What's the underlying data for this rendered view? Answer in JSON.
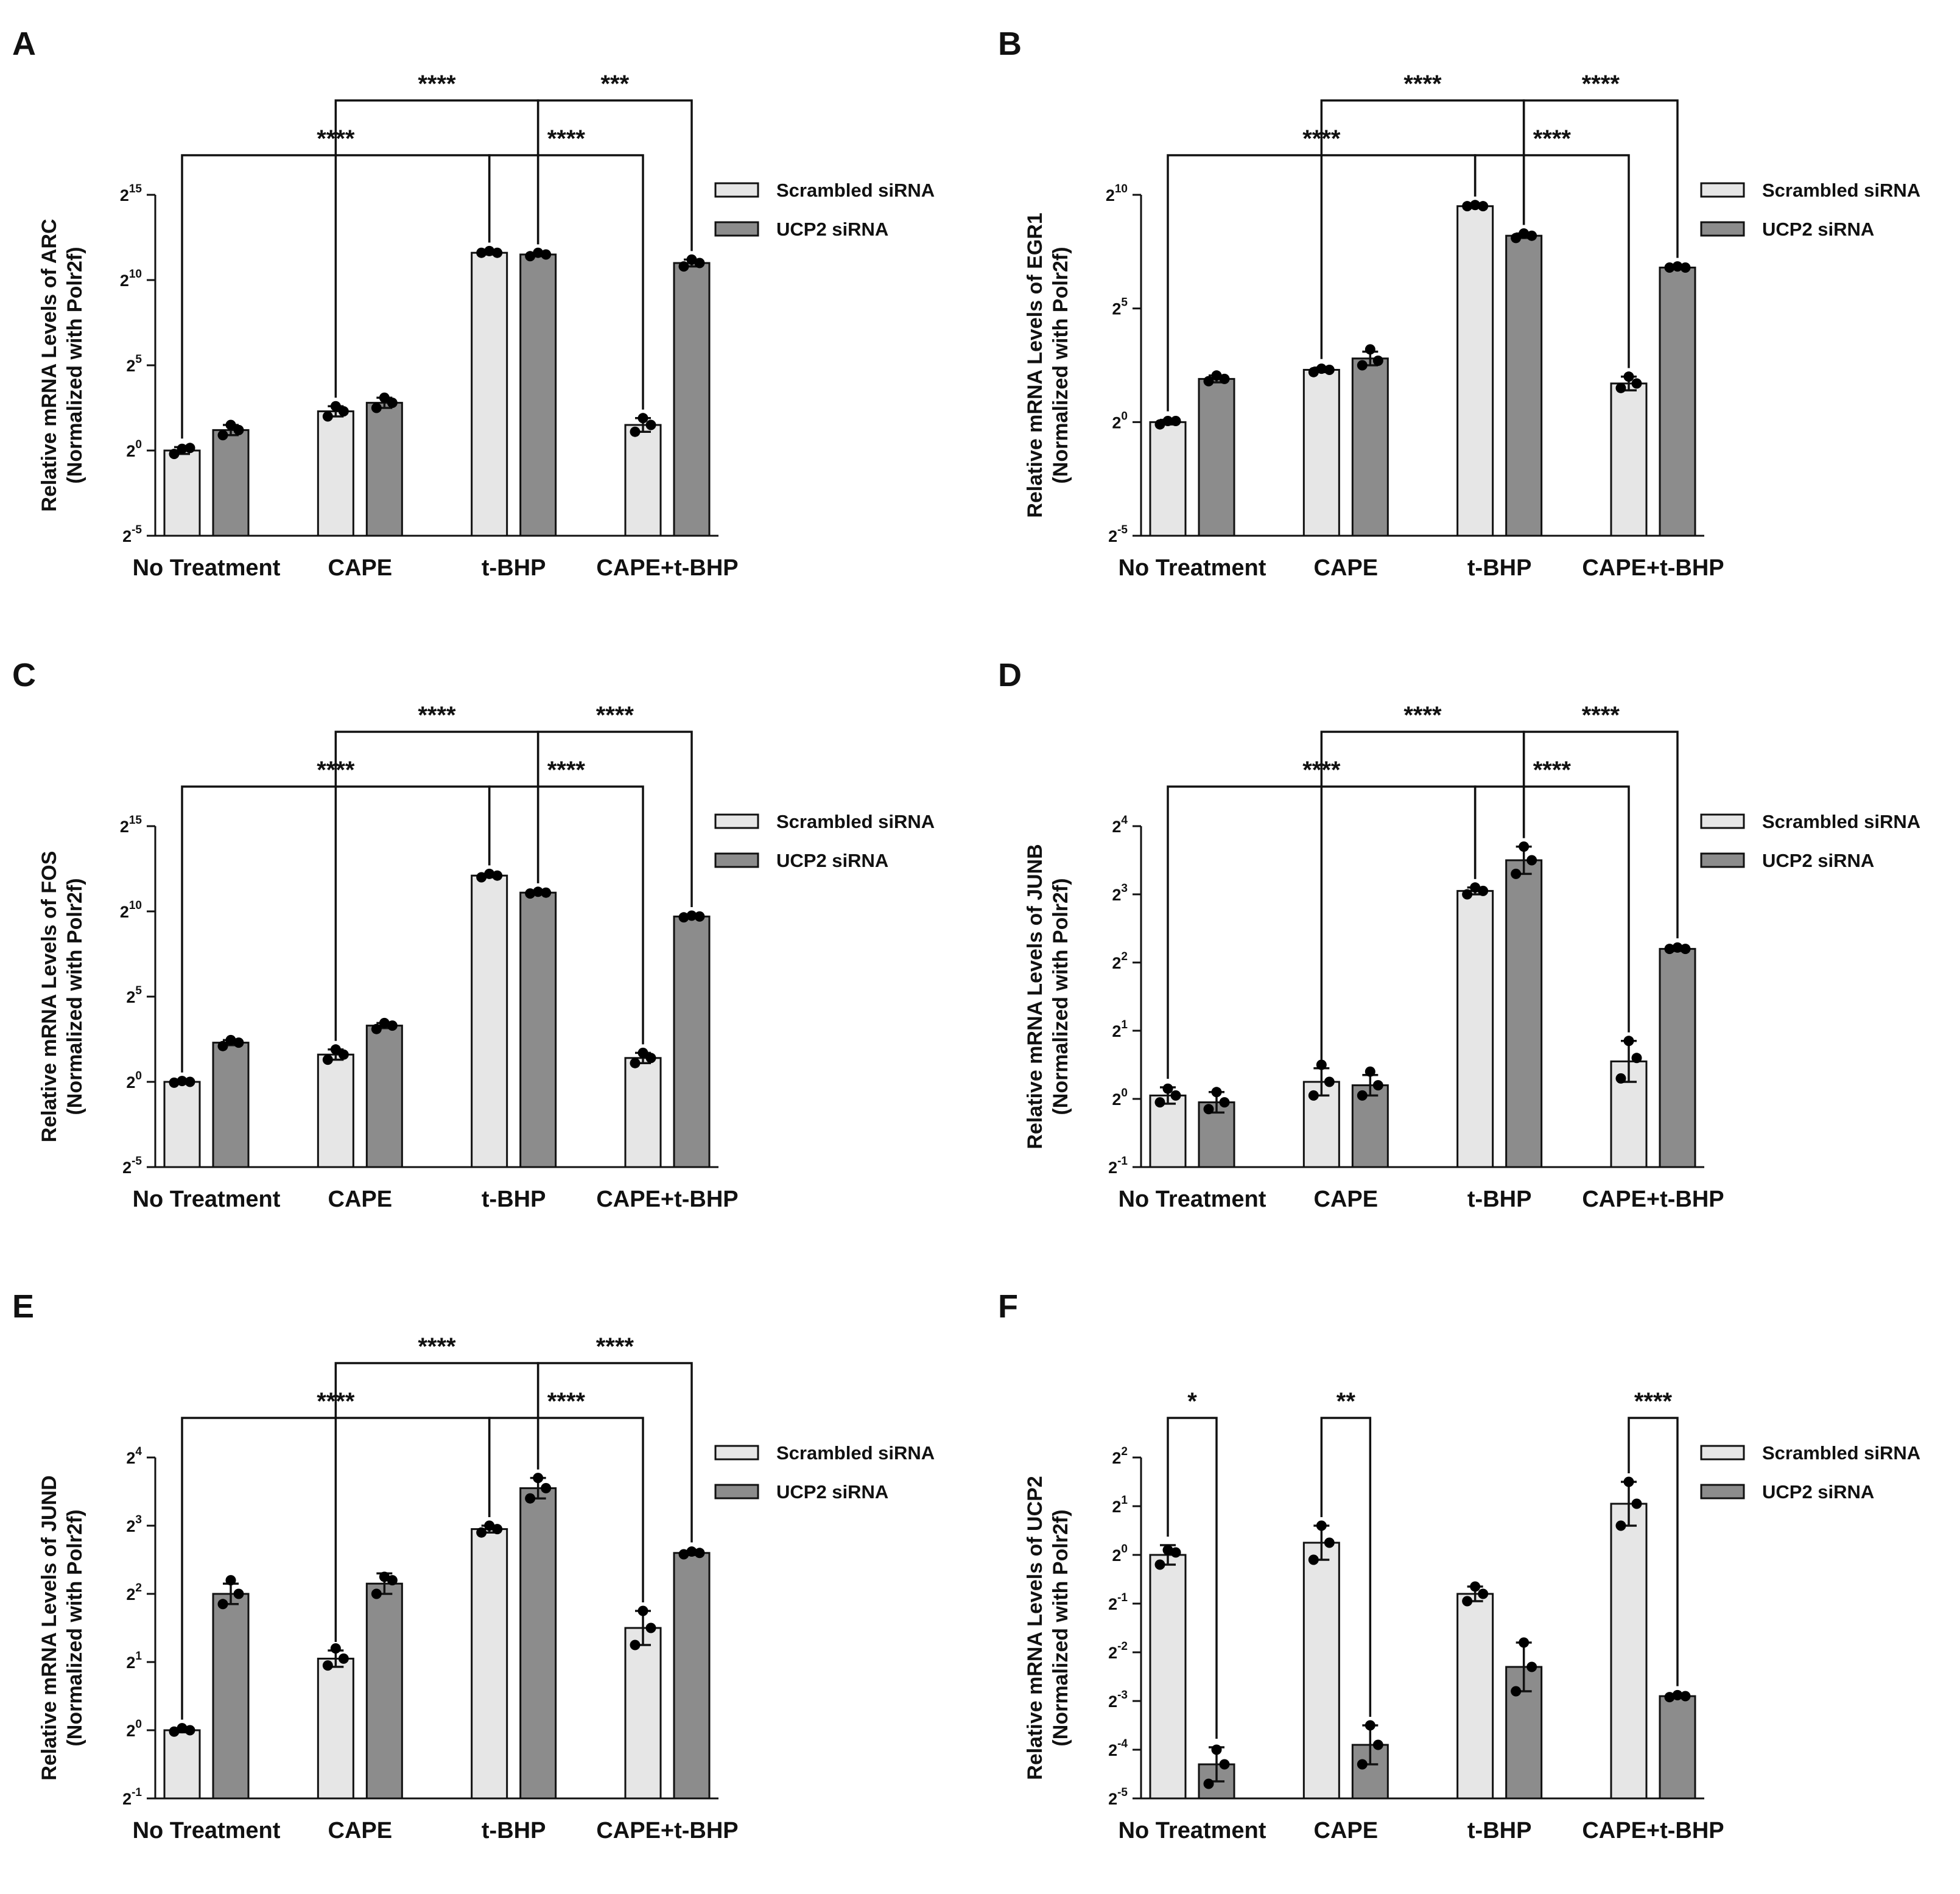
{
  "figure": {
    "legend": {
      "series": [
        "Scrambled siRNA",
        "UCP2 siRNA"
      ]
    },
    "colors": {
      "scrambled": "#e6e6e6",
      "ucp2": "#8c8c8c",
      "ink": "#111111",
      "dot": "#000000"
    }
  },
  "chart_data": [
    {
      "panel": "A",
      "type": "bar",
      "gene": "ARC",
      "ylabel_line1": "Relative mRNA Levels of ARC",
      "ylabel_line2": "(Normalized with  Polr2f)",
      "categories": [
        "No Treatment",
        "CAPE",
        "t-BHP",
        "CAPE+t-BHP"
      ],
      "series_names": [
        "Scrambled siRNA",
        "UCP2 siRNA"
      ],
      "log_base": 2,
      "ylim_exp": [
        -5,
        15
      ],
      "tick_exps": [
        -5,
        0,
        5,
        10,
        15
      ],
      "bars": [
        {
          "mean": 0.0,
          "err": 0.2,
          "points": [
            -0.2,
            0.1,
            0.15
          ]
        },
        {
          "mean": 1.2,
          "err": 0.3,
          "points": [
            0.9,
            1.5,
            1.2
          ]
        },
        {
          "mean": 2.3,
          "err": 0.3,
          "points": [
            2.0,
            2.6,
            2.3
          ]
        },
        {
          "mean": 2.8,
          "err": 0.3,
          "points": [
            2.5,
            3.1,
            2.8
          ]
        },
        {
          "mean": 11.6,
          "err": 0.1,
          "points": [
            11.6,
            11.7,
            11.6
          ]
        },
        {
          "mean": 11.5,
          "err": 0.1,
          "points": [
            11.4,
            11.6,
            11.5
          ]
        },
        {
          "mean": 1.5,
          "err": 0.4,
          "points": [
            1.1,
            1.9,
            1.5
          ]
        },
        {
          "mean": 11.0,
          "err": 0.2,
          "points": [
            10.8,
            11.2,
            11.0
          ]
        }
      ],
      "comparisons": [
        {
          "label": "****",
          "from": 0,
          "to": 4,
          "level": 1
        },
        {
          "label": "****",
          "from": 4,
          "to": 6,
          "level": 1
        },
        {
          "label": "****",
          "from": 2,
          "to": 5,
          "level": 2
        },
        {
          "label": "***",
          "from": 5,
          "to": 7,
          "level": 2
        }
      ]
    },
    {
      "panel": "B",
      "type": "bar",
      "gene": "EGR1",
      "ylabel_line1": "Relative mRNA Levels of EGR1",
      "ylabel_line2": "(Normalized with  Polr2f)",
      "categories": [
        "No Treatment",
        "CAPE",
        "t-BHP",
        "CAPE+t-BHP"
      ],
      "series_names": [
        "Scrambled siRNA",
        "UCP2 siRNA"
      ],
      "log_base": 2,
      "ylim_exp": [
        -5,
        10
      ],
      "tick_exps": [
        -5,
        0,
        5,
        10
      ],
      "bars": [
        {
          "mean": 0.0,
          "err": 0.1,
          "points": [
            -0.1,
            0.05,
            0.05
          ]
        },
        {
          "mean": 1.9,
          "err": 0.15,
          "points": [
            1.8,
            2.05,
            1.9
          ]
        },
        {
          "mean": 2.3,
          "err": 0.1,
          "points": [
            2.2,
            2.35,
            2.3
          ]
        },
        {
          "mean": 2.8,
          "err": 0.3,
          "points": [
            2.5,
            3.2,
            2.7
          ]
        },
        {
          "mean": 9.5,
          "err": 0.05,
          "points": [
            9.5,
            9.55,
            9.5
          ]
        },
        {
          "mean": 8.2,
          "err": 0.1,
          "points": [
            8.1,
            8.3,
            8.2
          ]
        },
        {
          "mean": 1.7,
          "err": 0.3,
          "points": [
            1.5,
            2.0,
            1.7
          ]
        },
        {
          "mean": 6.8,
          "err": 0.05,
          "points": [
            6.8,
            6.85,
            6.8
          ]
        }
      ],
      "comparisons": [
        {
          "label": "****",
          "from": 0,
          "to": 4,
          "level": 1
        },
        {
          "label": "****",
          "from": 4,
          "to": 6,
          "level": 1
        },
        {
          "label": "****",
          "from": 2,
          "to": 5,
          "level": 2
        },
        {
          "label": "****",
          "from": 5,
          "to": 7,
          "level": 2
        }
      ]
    },
    {
      "panel": "C",
      "type": "bar",
      "gene": "FOS",
      "ylabel_line1": "Relative mRNA Levels of FOS",
      "ylabel_line2": "(Normalized with  Polr2f)",
      "categories": [
        "No Treatment",
        "CAPE",
        "t-BHP",
        "CAPE+t-BHP"
      ],
      "series_names": [
        "Scrambled siRNA",
        "UCP2 siRNA"
      ],
      "log_base": 2,
      "ylim_exp": [
        -5,
        15
      ],
      "tick_exps": [
        -5,
        0,
        5,
        10,
        15
      ],
      "bars": [
        {
          "mean": 0.0,
          "err": 0.05,
          "points": [
            -0.05,
            0.05,
            0.0
          ]
        },
        {
          "mean": 2.3,
          "err": 0.15,
          "points": [
            2.1,
            2.45,
            2.3
          ]
        },
        {
          "mean": 1.6,
          "err": 0.3,
          "points": [
            1.3,
            1.9,
            1.6
          ]
        },
        {
          "mean": 3.3,
          "err": 0.15,
          "points": [
            3.1,
            3.45,
            3.3
          ]
        },
        {
          "mean": 12.1,
          "err": 0.1,
          "points": [
            12.0,
            12.2,
            12.1
          ]
        },
        {
          "mean": 11.1,
          "err": 0.05,
          "points": [
            11.05,
            11.15,
            11.1
          ]
        },
        {
          "mean": 1.4,
          "err": 0.3,
          "points": [
            1.1,
            1.7,
            1.4
          ]
        },
        {
          "mean": 9.7,
          "err": 0.05,
          "points": [
            9.65,
            9.75,
            9.7
          ]
        }
      ],
      "comparisons": [
        {
          "label": "****",
          "from": 0,
          "to": 4,
          "level": 1
        },
        {
          "label": "****",
          "from": 4,
          "to": 6,
          "level": 1
        },
        {
          "label": "****",
          "from": 2,
          "to": 5,
          "level": 2
        },
        {
          "label": "****",
          "from": 5,
          "to": 7,
          "level": 2
        }
      ]
    },
    {
      "panel": "D",
      "type": "bar",
      "gene": "JUNB",
      "ylabel_line1": "Relative mRNA Levels of JUNB",
      "ylabel_line2": "(Normalized with  Polr2f)",
      "categories": [
        "No Treatment",
        "CAPE",
        "t-BHP",
        "CAPE+t-BHP"
      ],
      "series_names": [
        "Scrambled siRNA",
        "UCP2 siRNA"
      ],
      "log_base": 2,
      "ylim_exp": [
        -1,
        4
      ],
      "tick_exps": [
        -1,
        0,
        1,
        2,
        3,
        4
      ],
      "bars": [
        {
          "mean": 0.05,
          "err": 0.12,
          "points": [
            -0.05,
            0.15,
            0.05
          ]
        },
        {
          "mean": -0.05,
          "err": 0.15,
          "points": [
            -0.15,
            0.1,
            -0.05
          ]
        },
        {
          "mean": 0.25,
          "err": 0.2,
          "points": [
            0.05,
            0.5,
            0.25
          ]
        },
        {
          "mean": 0.2,
          "err": 0.15,
          "points": [
            0.05,
            0.4,
            0.2
          ]
        },
        {
          "mean": 3.05,
          "err": 0.05,
          "points": [
            3.0,
            3.1,
            3.05
          ]
        },
        {
          "mean": 3.5,
          "err": 0.2,
          "points": [
            3.3,
            3.7,
            3.5
          ]
        },
        {
          "mean": 0.55,
          "err": 0.3,
          "points": [
            0.3,
            0.85,
            0.6
          ]
        },
        {
          "mean": 2.2,
          "err": 0.03,
          "points": [
            2.2,
            2.22,
            2.2
          ]
        }
      ],
      "comparisons": [
        {
          "label": "****",
          "from": 0,
          "to": 4,
          "level": 1
        },
        {
          "label": "****",
          "from": 4,
          "to": 6,
          "level": 1
        },
        {
          "label": "****",
          "from": 2,
          "to": 5,
          "level": 2
        },
        {
          "label": "****",
          "from": 5,
          "to": 7,
          "level": 2
        }
      ]
    },
    {
      "panel": "E",
      "type": "bar",
      "gene": "JUND",
      "ylabel_line1": "Relative mRNA Levels of JUND",
      "ylabel_line2": "(Normalized with  Polr2f)",
      "categories": [
        "No Treatment",
        "CAPE",
        "t-BHP",
        "CAPE+t-BHP"
      ],
      "series_names": [
        "Scrambled siRNA",
        "UCP2 siRNA"
      ],
      "log_base": 2,
      "ylim_exp": [
        -1,
        4
      ],
      "tick_exps": [
        -1,
        0,
        1,
        2,
        3,
        4
      ],
      "bars": [
        {
          "mean": 0.0,
          "err": 0.03,
          "points": [
            -0.02,
            0.03,
            0.0
          ]
        },
        {
          "mean": 2.0,
          "err": 0.15,
          "points": [
            1.85,
            2.2,
            2.0
          ]
        },
        {
          "mean": 1.05,
          "err": 0.12,
          "points": [
            0.95,
            1.2,
            1.05
          ]
        },
        {
          "mean": 2.15,
          "err": 0.15,
          "points": [
            2.0,
            2.25,
            2.2
          ]
        },
        {
          "mean": 2.95,
          "err": 0.05,
          "points": [
            2.9,
            3.0,
            2.95
          ]
        },
        {
          "mean": 3.55,
          "err": 0.15,
          "points": [
            3.4,
            3.7,
            3.55
          ]
        },
        {
          "mean": 1.5,
          "err": 0.25,
          "points": [
            1.25,
            1.75,
            1.5
          ]
        },
        {
          "mean": 2.6,
          "err": 0.03,
          "points": [
            2.58,
            2.62,
            2.6
          ]
        }
      ],
      "comparisons": [
        {
          "label": "****",
          "from": 0,
          "to": 4,
          "level": 1
        },
        {
          "label": "****",
          "from": 4,
          "to": 6,
          "level": 1
        },
        {
          "label": "****",
          "from": 2,
          "to": 5,
          "level": 2
        },
        {
          "label": "****",
          "from": 5,
          "to": 7,
          "level": 2
        }
      ]
    },
    {
      "panel": "F",
      "type": "bar",
      "gene": "UCP2",
      "ylabel_line1": "Relative mRNA Levels of UCP2",
      "ylabel_line2": "(Normalized with  Polr2f)",
      "categories": [
        "No Treatment",
        "CAPE",
        "t-BHP",
        "CAPE+t-BHP"
      ],
      "series_names": [
        "Scrambled siRNA",
        "UCP2 siRNA"
      ],
      "log_base": 2,
      "ylim_exp": [
        -5,
        2
      ],
      "tick_exps": [
        -5,
        -4,
        -3,
        -2,
        -1,
        0,
        1,
        2
      ],
      "bars": [
        {
          "mean": 0.0,
          "err": 0.2,
          "points": [
            -0.2,
            0.1,
            0.05
          ]
        },
        {
          "mean": -4.3,
          "err": 0.35,
          "points": [
            -4.7,
            -4.0,
            -4.3
          ]
        },
        {
          "mean": 0.25,
          "err": 0.35,
          "points": [
            -0.1,
            0.6,
            0.25
          ]
        },
        {
          "mean": -3.9,
          "err": 0.4,
          "points": [
            -4.3,
            -3.5,
            -3.9
          ]
        },
        {
          "mean": -0.8,
          "err": 0.15,
          "points": [
            -0.95,
            -0.65,
            -0.8
          ]
        },
        {
          "mean": -2.3,
          "err": 0.5,
          "points": [
            -2.8,
            -1.8,
            -2.3
          ]
        },
        {
          "mean": 1.05,
          "err": 0.45,
          "points": [
            0.6,
            1.5,
            1.05
          ]
        },
        {
          "mean": -2.9,
          "err": 0.03,
          "points": [
            -2.92,
            -2.88,
            -2.9
          ]
        }
      ],
      "comparisons": [
        {
          "label": "*",
          "from": 0,
          "to": 1,
          "level": 1
        },
        {
          "label": "**",
          "from": 2,
          "to": 3,
          "level": 1
        },
        {
          "label": "****",
          "from": 6,
          "to": 7,
          "level": 1
        }
      ]
    }
  ]
}
